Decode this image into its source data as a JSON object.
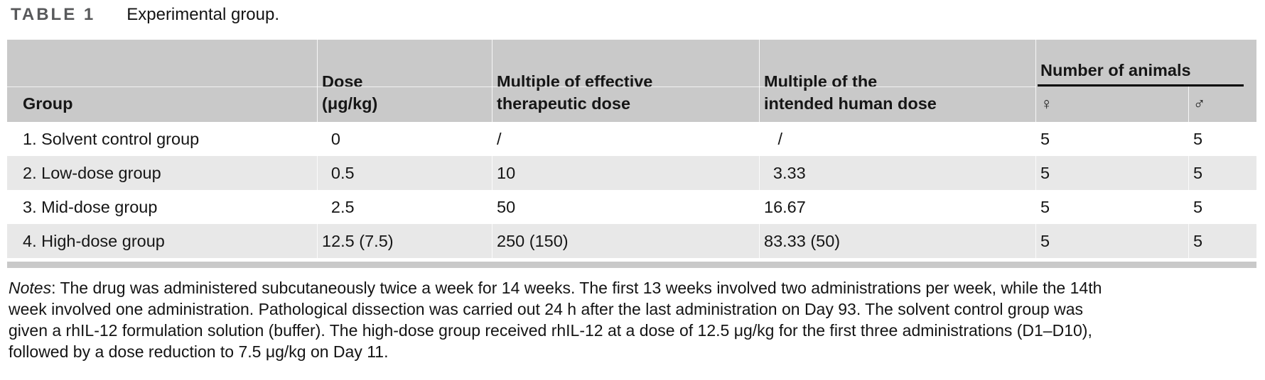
{
  "title": {
    "label": "TABLE 1",
    "caption": "Experimental group."
  },
  "table": {
    "header": {
      "group": [
        "Group"
      ],
      "dose": [
        "Dose",
        "(μg/kg)"
      ],
      "mult_effective": [
        "Multiple of effective",
        "therapeutic dose"
      ],
      "mult_human": [
        "Multiple of the",
        "intended human dose"
      ],
      "animals": "Number of animals",
      "female": "♀",
      "male": "♂"
    },
    "rows": [
      {
        "group": "1. Solvent control group",
        "dose": "0",
        "mult_effective": "/",
        "mult_human": "/",
        "female": "5",
        "male": "5"
      },
      {
        "group": "2. Low-dose group",
        "dose": "0.5",
        "mult_effective": "10",
        "mult_human": "3.33",
        "female": "5",
        "male": "5"
      },
      {
        "group": "3. Mid-dose group",
        "dose": "2.5",
        "mult_effective": "50",
        "mult_human": "16.67",
        "female": "5",
        "male": "5"
      },
      {
        "group": "4. High-dose group",
        "dose": "12.5 (7.5)",
        "mult_effective": "250 (150)",
        "mult_human": "83.33 (50)",
        "female": "5",
        "male": "5"
      }
    ]
  },
  "notes": {
    "lead": "Notes",
    "lines": [
      ": The drug was administered subcutaneously twice a week for 14 weeks. The first 13 weeks involved two administrations per week, while the 14th",
      "week involved one administration. Pathological dissection was carried out 24 h after the last administration on Day 93. The solvent control group was",
      "given a rhIL-12 formulation solution (buffer). The high-dose group received rhIL-12 at a dose of 12.5 μg/kg for the first three administrations (D1–D10),",
      "followed by a dose reduction to 7.5 μg/kg on Day 11."
    ]
  },
  "colors": {
    "header_bg": "#c9c9c9",
    "row_alt_bg": "#e8e8e8",
    "title_label_color": "#58595b",
    "rule_color": "#000000"
  }
}
